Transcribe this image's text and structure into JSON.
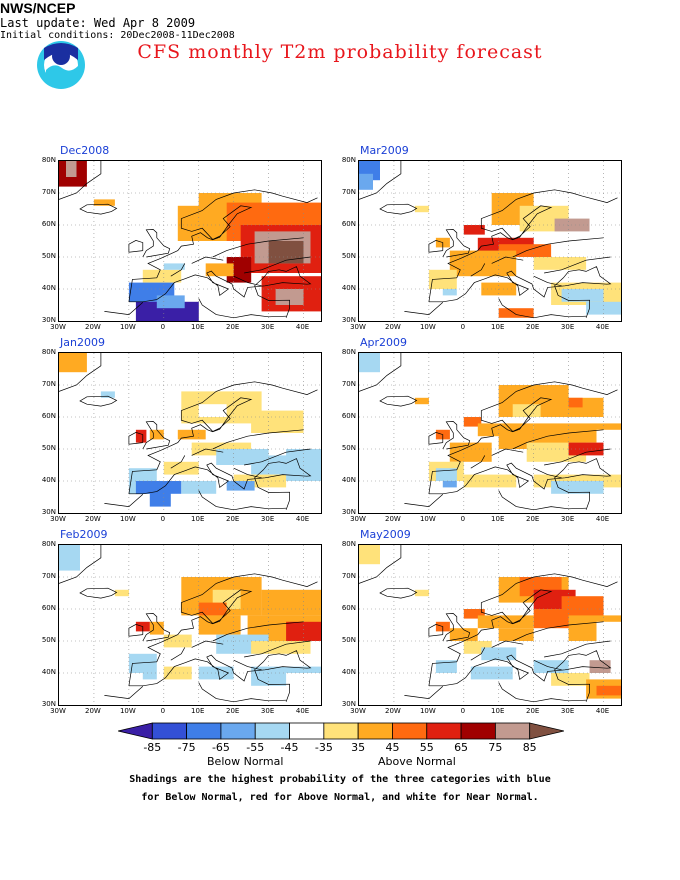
{
  "header": {
    "org": "NWS/NCEP",
    "last_update": "Last update: Wed Apr 8 2009",
    "initial_conditions": "Initial conditions: 20Dec2008-11Dec2008"
  },
  "title": "CFS monthly T2m probability forecast",
  "axes": {
    "lat_labels": [
      "80N",
      "70N",
      "60N",
      "50N",
      "40N",
      "30N"
    ],
    "lon_labels": [
      "30W",
      "20W",
      "10W",
      "0",
      "10E",
      "20E",
      "30E",
      "40E"
    ]
  },
  "panels": [
    {
      "id": "dec",
      "title": "Dec2008"
    },
    {
      "id": "mar",
      "title": "Mar2009"
    },
    {
      "id": "jan",
      "title": "Jan2009"
    },
    {
      "id": "apr",
      "title": "Apr2009"
    },
    {
      "id": "feb",
      "title": "Feb2009"
    },
    {
      "id": "may",
      "title": "May2009"
    }
  ],
  "colorbar": {
    "labels": [
      "-85",
      "-75",
      "-65",
      "-55",
      "-45",
      "-35",
      "35",
      "45",
      "55",
      "65",
      "75",
      "85"
    ],
    "colors": [
      "#3a1fa6",
      "#3350d6",
      "#3f7ee8",
      "#6aa8ee",
      "#a6d8f2",
      "#ffffff",
      "#ffe27a",
      "#ffaa22",
      "#ff6a10",
      "#e02010",
      "#a00000",
      "#c29a90",
      "#805040"
    ],
    "below_label": "Below Normal",
    "above_label": "Above Normal"
  },
  "note_line1": "Shadings are the highest probability of the three categories with blue",
  "note_line2": "for Below Normal, red for Above Normal, and white for Near Normal."
}
